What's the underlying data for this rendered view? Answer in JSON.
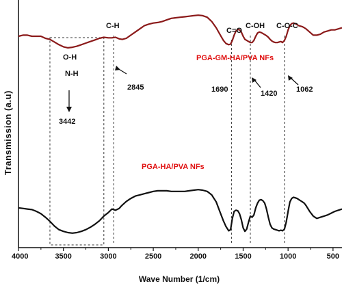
{
  "chart_data": {
    "type": "line",
    "xlabel": "Wave Number (1/cm)",
    "ylabel": "Transmission (a.u)",
    "xlim": [
      4000,
      400
    ],
    "x_ticks": [
      4000,
      3500,
      3000,
      2500,
      2000,
      1500,
      1000,
      500
    ],
    "x_tick_labels": [
      "4000",
      "3500",
      "3000",
      "2500",
      "2000",
      "1500",
      "1000",
      "500"
    ],
    "y_range": [
      0,
      1
    ],
    "grid": false,
    "legend": "none",
    "series": [
      {
        "name": "PGA-GM-HA/PVA NFs",
        "color": "#8b1a1a",
        "label_color": "#e01010",
        "x": [
          4000,
          3950,
          3900,
          3850,
          3800,
          3750,
          3700,
          3650,
          3600,
          3550,
          3500,
          3450,
          3400,
          3350,
          3300,
          3250,
          3200,
          3150,
          3100,
          3050,
          3000,
          2960,
          2920,
          2880,
          2845,
          2800,
          2750,
          2700,
          2650,
          2600,
          2550,
          2500,
          2450,
          2400,
          2350,
          2300,
          2250,
          2200,
          2150,
          2100,
          2050,
          2000,
          1950,
          1900,
          1850,
          1800,
          1760,
          1720,
          1690,
          1660,
          1640,
          1620,
          1600,
          1580,
          1560,
          1540,
          1520,
          1500,
          1480,
          1460,
          1440,
          1420,
          1400,
          1380,
          1360,
          1340,
          1320,
          1300,
          1280,
          1260,
          1240,
          1220,
          1200,
          1180,
          1160,
          1140,
          1120,
          1100,
          1080,
          1062,
          1040,
          1020,
          1000,
          980,
          960,
          940,
          920,
          900,
          880,
          860,
          840,
          820,
          800,
          760,
          720,
          680,
          640,
          600,
          560,
          520,
          480,
          440,
          400
        ],
        "values": [
          0.76,
          0.77,
          0.77,
          0.76,
          0.76,
          0.76,
          0.74,
          0.73,
          0.705,
          0.68,
          0.66,
          0.65,
          0.655,
          0.665,
          0.68,
          0.695,
          0.71,
          0.725,
          0.74,
          0.75,
          0.745,
          0.745,
          0.75,
          0.735,
          0.73,
          0.74,
          0.77,
          0.8,
          0.83,
          0.86,
          0.875,
          0.885,
          0.89,
          0.9,
          0.915,
          0.93,
          0.935,
          0.94,
          0.945,
          0.95,
          0.955,
          0.96,
          0.955,
          0.94,
          0.9,
          0.84,
          0.78,
          0.72,
          0.69,
          0.68,
          0.685,
          0.72,
          0.77,
          0.81,
          0.825,
          0.82,
          0.8,
          0.76,
          0.73,
          0.72,
          0.71,
          0.7,
          0.7,
          0.72,
          0.76,
          0.79,
          0.8,
          0.795,
          0.785,
          0.775,
          0.765,
          0.75,
          0.73,
          0.715,
          0.705,
          0.7,
          0.7,
          0.705,
          0.71,
          0.7,
          0.72,
          0.76,
          0.82,
          0.86,
          0.88,
          0.885,
          0.88,
          0.87,
          0.86,
          0.855,
          0.85,
          0.84,
          0.83,
          0.8,
          0.77,
          0.77,
          0.78,
          0.8,
          0.81,
          0.82,
          0.82,
          0.83,
          0.84
        ]
      },
      {
        "name": "PGA-HA/PVA NFs",
        "color": "#111111",
        "label_color": "#e01010",
        "x": [
          4000,
          3950,
          3900,
          3850,
          3800,
          3750,
          3700,
          3650,
          3600,
          3550,
          3500,
          3450,
          3400,
          3350,
          3300,
          3250,
          3200,
          3150,
          3100,
          3050,
          3000,
          2960,
          2920,
          2880,
          2850,
          2800,
          2750,
          2700,
          2650,
          2600,
          2550,
          2500,
          2450,
          2400,
          2350,
          2300,
          2250,
          2200,
          2150,
          2100,
          2050,
          2000,
          1950,
          1900,
          1850,
          1800,
          1760,
          1720,
          1690,
          1660,
          1640,
          1620,
          1600,
          1580,
          1560,
          1540,
          1520,
          1500,
          1480,
          1460,
          1440,
          1420,
          1400,
          1380,
          1360,
          1340,
          1320,
          1300,
          1280,
          1260,
          1240,
          1220,
          1200,
          1180,
          1160,
          1140,
          1120,
          1100,
          1080,
          1062,
          1040,
          1020,
          1000,
          980,
          960,
          940,
          920,
          900,
          880,
          860,
          840,
          820,
          800,
          760,
          720,
          680,
          640,
          600,
          560,
          520,
          480,
          440,
          400
        ],
        "values": [
          0.28,
          0.275,
          0.27,
          0.265,
          0.25,
          0.23,
          0.2,
          0.165,
          0.125,
          0.095,
          0.08,
          0.07,
          0.065,
          0.07,
          0.08,
          0.095,
          0.115,
          0.14,
          0.17,
          0.21,
          0.24,
          0.27,
          0.26,
          0.275,
          0.3,
          0.335,
          0.36,
          0.38,
          0.39,
          0.4,
          0.41,
          0.42,
          0.425,
          0.425,
          0.425,
          0.42,
          0.42,
          0.42,
          0.42,
          0.425,
          0.43,
          0.435,
          0.43,
          0.42,
          0.39,
          0.33,
          0.25,
          0.17,
          0.12,
          0.085,
          0.095,
          0.19,
          0.25,
          0.26,
          0.255,
          0.23,
          0.18,
          0.11,
          0.08,
          0.1,
          0.16,
          0.21,
          0.2,
          0.22,
          0.28,
          0.32,
          0.345,
          0.35,
          0.34,
          0.32,
          0.27,
          0.2,
          0.14,
          0.11,
          0.1,
          0.095,
          0.09,
          0.085,
          0.09,
          0.085,
          0.1,
          0.16,
          0.25,
          0.33,
          0.36,
          0.37,
          0.365,
          0.36,
          0.35,
          0.34,
          0.33,
          0.32,
          0.3,
          0.25,
          0.21,
          0.19,
          0.2,
          0.21,
          0.22,
          0.235,
          0.25,
          0.26,
          0.27
        ]
      }
    ],
    "annotations": {
      "oh": "O-H",
      "nh": "N-H",
      "oh_nh_value": "3442",
      "ch": "C-H",
      "ch_value": "2845",
      "co_double": "C=O",
      "co_double_value": "1690",
      "coh": "C-OH",
      "coh_value": "1420",
      "coc": "C-O-C",
      "coc_value": "1062"
    },
    "markers": {
      "dashed_box_x": [
        3650,
        3050
      ],
      "ch_line_x": 2940,
      "co_line_x": 1630,
      "coh_line_x": 1420,
      "coc_line_x": 1040
    }
  }
}
